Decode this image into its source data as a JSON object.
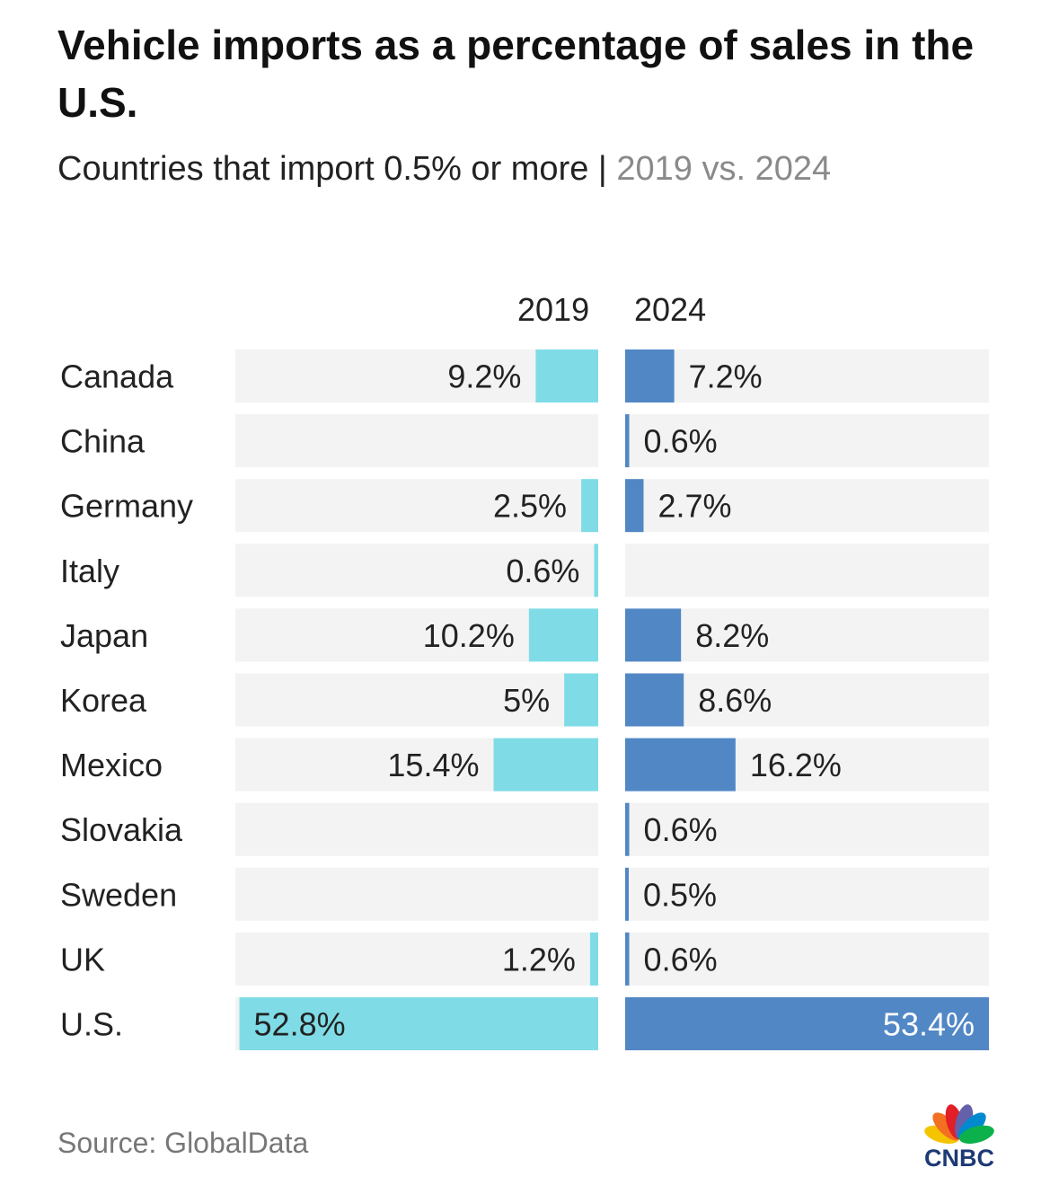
{
  "header": {
    "title": "Vehicle imports as a percentage of sales in the U.S.",
    "subtitle_main": "Countries that import 0.5% or more |",
    "subtitle_muted": "2019 vs. 2024"
  },
  "colors": {
    "bar_2019": "#7fdce6",
    "bar_2024": "#5187c5",
    "track": "#f3f3f3",
    "label_on_dark": "#ffffff",
    "text": "#222222"
  },
  "chart_data": {
    "type": "bar",
    "orientation": "horizontal",
    "layout": "butterfly",
    "categories": [
      "Canada",
      "China",
      "Germany",
      "Italy",
      "Japan",
      "Korea",
      "Mexico",
      "Slovakia",
      "Sweden",
      "UK",
      "U.S."
    ],
    "series": [
      {
        "name": "2019",
        "values": [
          9.2,
          null,
          2.5,
          0.6,
          10.2,
          5,
          15.4,
          null,
          null,
          1.2,
          52.8
        ],
        "labels": [
          "9.2%",
          "",
          "2.5%",
          "0.6%",
          "10.2%",
          "5%",
          "15.4%",
          "",
          "",
          "1.2%",
          "52.8%"
        ]
      },
      {
        "name": "2024",
        "values": [
          7.2,
          0.6,
          2.7,
          null,
          8.2,
          8.6,
          16.2,
          0.6,
          0.5,
          0.6,
          53.4
        ],
        "labels": [
          "7.2%",
          "0.6%",
          "2.7%",
          "",
          "8.2%",
          "8.6%",
          "16.2%",
          "0.6%",
          "0.5%",
          "0.6%",
          "53.4%"
        ]
      }
    ],
    "xlim": [
      0,
      53.4
    ],
    "grid": false
  },
  "footer": {
    "source": "Source: GlobalData",
    "logo_text": "CNBC"
  },
  "logo": {
    "icon": "peacock-icon",
    "colors": [
      "#f5c400",
      "#f37021",
      "#e21e26",
      "#6460aa",
      "#0089cf",
      "#0db14b"
    ]
  }
}
